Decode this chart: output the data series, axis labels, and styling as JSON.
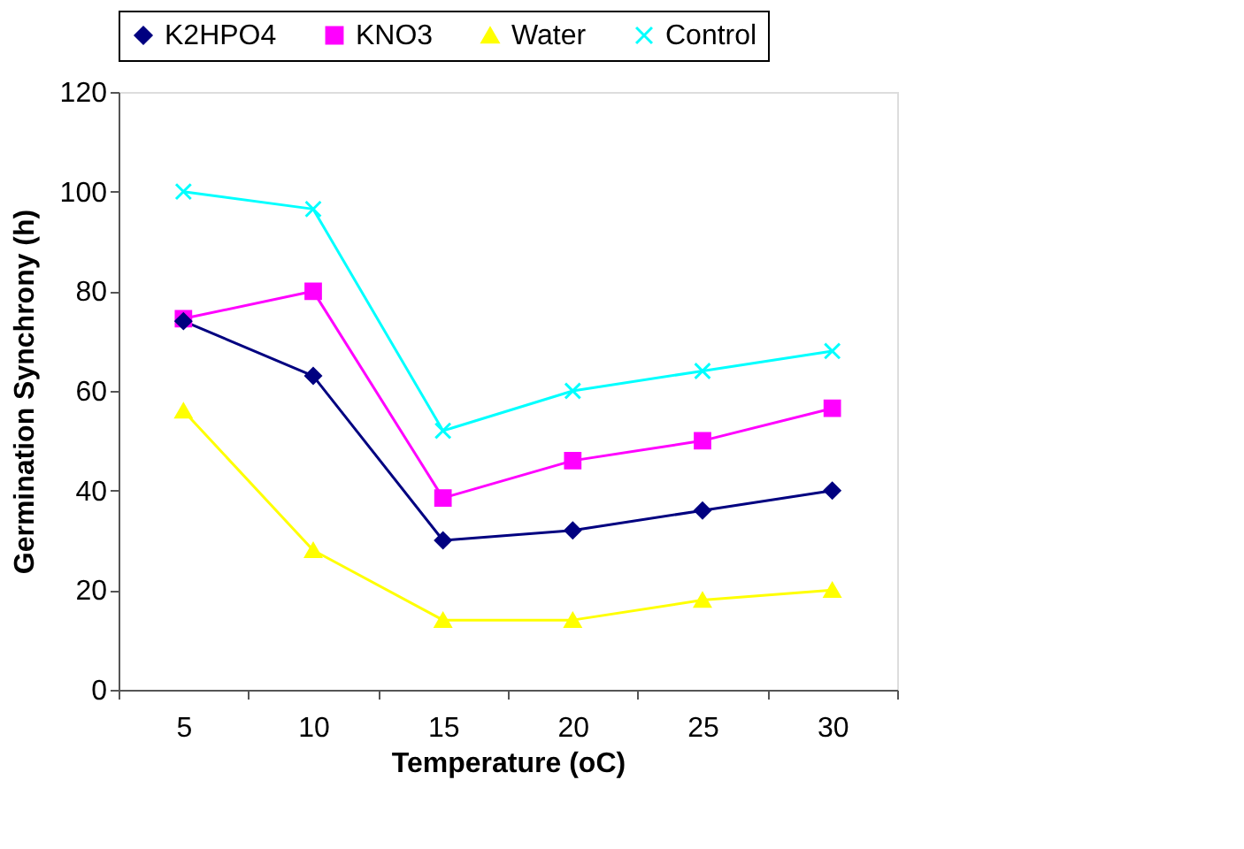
{
  "chart_data": {
    "type": "line",
    "xlabel": "Temperature (oC)",
    "ylabel": "Germination Synchrony (h)",
    "categories": [
      "5",
      "10",
      "15",
      "20",
      "25",
      "30"
    ],
    "series": [
      {
        "name": "K2HPO4",
        "color": "#000080",
        "marker": "diamond",
        "values": [
          74,
          63,
          30,
          32,
          36,
          40
        ]
      },
      {
        "name": "KNO3",
        "color": "#ff00ff",
        "marker": "square",
        "values": [
          74.5,
          80,
          38.5,
          46,
          50,
          56.5
        ]
      },
      {
        "name": "Water",
        "color": "#ffff00",
        "marker": "triangle",
        "values": [
          56,
          28,
          14,
          14,
          18,
          20
        ]
      },
      {
        "name": "Control",
        "color": "#00ffff",
        "marker": "cross",
        "values": [
          100,
          96.5,
          52,
          60,
          64,
          68
        ]
      }
    ],
    "ylim": [
      0,
      120
    ],
    "yticks": [
      0,
      20,
      40,
      60,
      80,
      100,
      120
    ],
    "grid": false,
    "legend": "top",
    "line_style": "solid"
  }
}
